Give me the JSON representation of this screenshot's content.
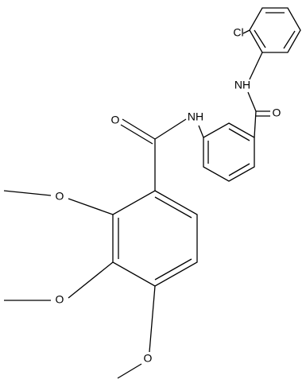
{
  "atoms": [
    {
      "label": "Cl"
    },
    {
      "label": "NH"
    },
    {
      "label": "O"
    },
    {
      "label": "NH"
    },
    {
      "label": "O"
    },
    {
      "label": "O"
    },
    {
      "label": "O"
    },
    {
      "label": "O"
    }
  ]
}
